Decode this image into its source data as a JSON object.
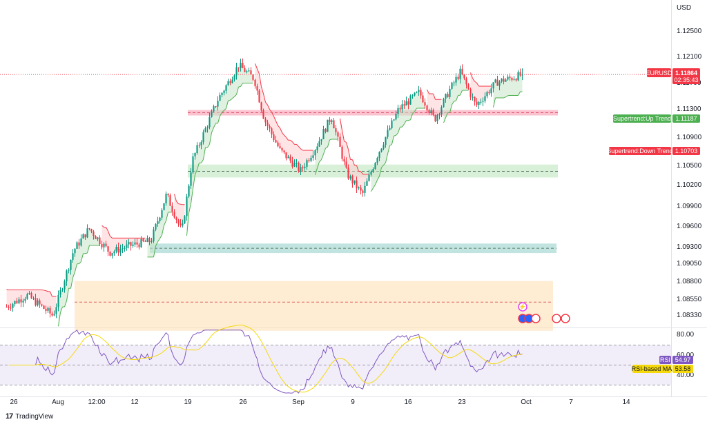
{
  "chart_data": [
    {
      "type": "candlestick",
      "symbol": "EURUSD",
      "currency": "USD",
      "price_ticks": [
        "1.12500",
        "1.12100",
        "1.11700",
        "1.11300",
        "1.10900",
        "1.10500",
        "1.10200",
        "1.09900",
        "1.09600",
        "1.09300",
        "1.09050",
        "1.08800",
        "1.08550",
        "1.08330"
      ],
      "last_price": "1.11864",
      "countdown": "02:35:43",
      "x_ticks": [
        "26",
        "Aug",
        "12:00",
        "12",
        "19",
        "26",
        "Sep",
        "9",
        "16",
        "23",
        "Oct",
        "7",
        "14"
      ],
      "indicators": [
        {
          "name": "Supertrend:Up Trend",
          "value": "1.11187",
          "color": "#4caf50"
        },
        {
          "name": "Supertrend:Down Trend",
          "value": "1.10703",
          "color": "#f23645"
        }
      ],
      "zones": [
        {
          "name": "resistance",
          "low": 1.1126,
          "high": 1.1134,
          "mid": 1.113,
          "color": "#f7a1b3"
        },
        {
          "name": "support",
          "low": 1.1035,
          "high": 1.1054,
          "mid": 1.1044,
          "color": "#c3e6c3"
        },
        {
          "name": "demand",
          "low": 1.0924,
          "high": 1.0938,
          "mid": 1.0931,
          "color": "#9fd6cf"
        },
        {
          "name": "base",
          "low": 1.081,
          "high": 1.0883,
          "mid": 1.0852,
          "color": "#fde2bc"
        }
      ],
      "close_anchors": [
        {
          "t": 0,
          "c": 1.0845
        },
        {
          "t": 0.04,
          "c": 1.0862
        },
        {
          "t": 0.09,
          "c": 1.0832
        },
        {
          "t": 0.13,
          "c": 1.0928
        },
        {
          "t": 0.16,
          "c": 1.096
        },
        {
          "t": 0.2,
          "c": 1.0925
        },
        {
          "t": 0.24,
          "c": 1.0935
        },
        {
          "t": 0.28,
          "c": 1.0942
        },
        {
          "t": 0.31,
          "c": 1.101
        },
        {
          "t": 0.34,
          "c": 1.0955
        },
        {
          "t": 0.36,
          "c": 1.106
        },
        {
          "t": 0.41,
          "c": 1.115
        },
        {
          "t": 0.45,
          "c": 1.12
        },
        {
          "t": 0.48,
          "c": 1.118
        },
        {
          "t": 0.5,
          "c": 1.112
        },
        {
          "t": 0.53,
          "c": 1.1075
        },
        {
          "t": 0.57,
          "c": 1.1045
        },
        {
          "t": 0.6,
          "c": 1.108
        },
        {
          "t": 0.63,
          "c": 1.1125
        },
        {
          "t": 0.66,
          "c": 1.104
        },
        {
          "t": 0.69,
          "c": 1.101
        },
        {
          "t": 0.72,
          "c": 1.107
        },
        {
          "t": 0.76,
          "c": 1.1135
        },
        {
          "t": 0.8,
          "c": 1.116
        },
        {
          "t": 0.83,
          "c": 1.112
        },
        {
          "t": 0.86,
          "c": 1.1165
        },
        {
          "t": 0.88,
          "c": 1.119
        },
        {
          "t": 0.91,
          "c": 1.114
        },
        {
          "t": 0.95,
          "c": 1.1175
        },
        {
          "t": 1,
          "c": 1.1186
        }
      ]
    },
    {
      "type": "line",
      "title": "RSI",
      "series": [
        {
          "name": "RSI",
          "value": "54.97",
          "color": "#7e57c2"
        },
        {
          "name": "RSI-based MA",
          "value": "53.58",
          "color": "#f5d90a"
        }
      ],
      "y_ticks": [
        "80.00",
        "60.00",
        "40.00"
      ],
      "bands": {
        "upper": 70,
        "middle": 50,
        "lower": 30
      },
      "ylim": [
        20,
        88
      ]
    }
  ],
  "branding": {
    "logo": "17",
    "name": "TradingView"
  }
}
